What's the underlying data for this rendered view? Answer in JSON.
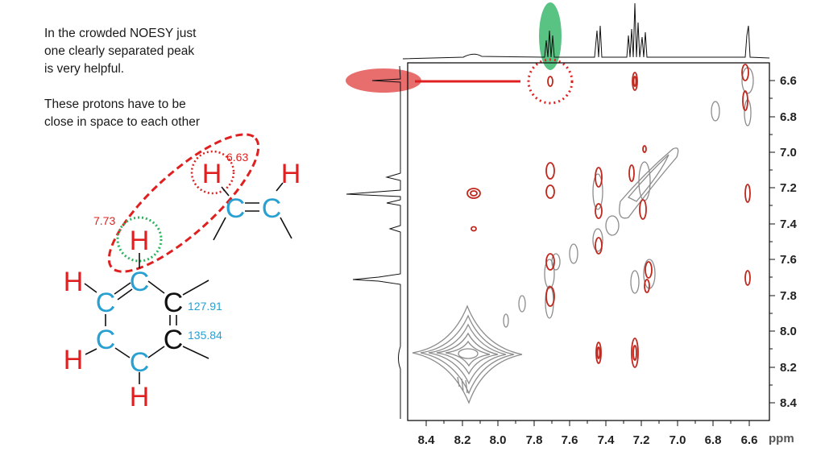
{
  "notes": {
    "line1": "In the crowded NOESY just",
    "line2": "one clearly separated peak",
    "line3": "is very helpful.",
    "line4": "These protons have to be",
    "line5": "close in space to each other"
  },
  "molecule": {
    "atoms": {
      "h_vinyl": "H",
      "h_vinyl_end": "H",
      "c_vinyl_1": "C",
      "c_vinyl_2": "C",
      "h_ring_top": "H",
      "c_ring_top": "C",
      "h_ring_left_top": "H",
      "c_ring_left_top": "C",
      "c_ring_right_top": "C",
      "c_ring_left_bottom": "C",
      "c_ring_right_bottom": "C",
      "h_ring_left_bottom": "H",
      "c_ring_bottom": "C",
      "h_ring_bottom": "H"
    },
    "labels": {
      "shift_vinyl_h": "6.63",
      "shift_aromatic_h": "7.73",
      "shift_c_upper": "127.91",
      "shift_c_lower": "135.84"
    }
  },
  "spectrum": {
    "x_ticks": [
      "8.4",
      "8.2",
      "8.0",
      "7.8",
      "7.6",
      "7.4",
      "7.2",
      "7.0",
      "6.8",
      "6.6"
    ],
    "y_ticks": [
      "6.6",
      "6.8",
      "7.0",
      "7.2",
      "7.4",
      "7.6",
      "7.8",
      "8.0",
      "8.2",
      "8.4"
    ],
    "unit": "ppm",
    "colors": {
      "noe_peak": "#c0281e",
      "diagonal_peak": "#8c8c8c",
      "highlight_red": "#e03c3c",
      "highlight_green": "#3cb96e",
      "carbon_blue": "#28a0d2"
    }
  },
  "chart_data": {
    "type": "heatmap",
    "xlabel": "ppm",
    "ylabel": "",
    "xlim": [
      8.5,
      6.5
    ],
    "ylim": [
      6.5,
      8.5
    ],
    "highlighted_cross_peak": {
      "x": 7.73,
      "y": 6.63
    },
    "cross_peaks": [
      {
        "x": 7.73,
        "y": 6.63
      },
      {
        "x": 7.22,
        "y": 6.63
      },
      {
        "x": 8.23,
        "y": 7.25
      },
      {
        "x": 8.23,
        "y": 7.47
      },
      {
        "x": 6.6,
        "y": 7.25
      },
      {
        "x": 6.6,
        "y": 7.72
      },
      {
        "x": 7.43,
        "y": 8.12
      },
      {
        "x": 7.22,
        "y": 8.12
      }
    ]
  }
}
